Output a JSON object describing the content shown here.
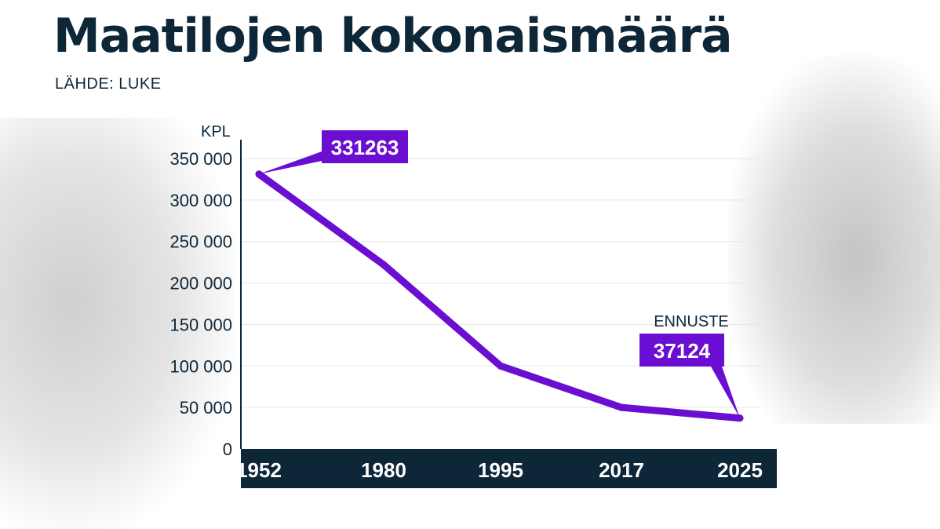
{
  "title": "Maatilojen kokonaismäärä",
  "source": "LÄHDE: LUKE",
  "colors": {
    "line": "#6a0fd1",
    "callout": "#6a0fd1",
    "text": "#0d2638",
    "axis_bar": "#0d2638",
    "grid": "#e6e6e6"
  },
  "chart_data": {
    "type": "line",
    "ylabel": "KPL",
    "categories": [
      "1952",
      "1980",
      "1995",
      "2017",
      "2025"
    ],
    "values": [
      331263,
      222000,
      100000,
      50000,
      37124
    ],
    "ylim": [
      0,
      350000
    ],
    "y_ticks": [
      0,
      50000,
      100000,
      150000,
      200000,
      250000,
      300000,
      350000
    ],
    "y_tick_labels": [
      "0",
      "50 000",
      "100 000",
      "150 000",
      "200 000",
      "250 000",
      "300 000",
      "350 000"
    ],
    "grid": true,
    "annotations": [
      {
        "category": "1952",
        "label": "331263"
      },
      {
        "category": "2025",
        "label": "37124",
        "note": "ENNUSTE"
      }
    ]
  }
}
